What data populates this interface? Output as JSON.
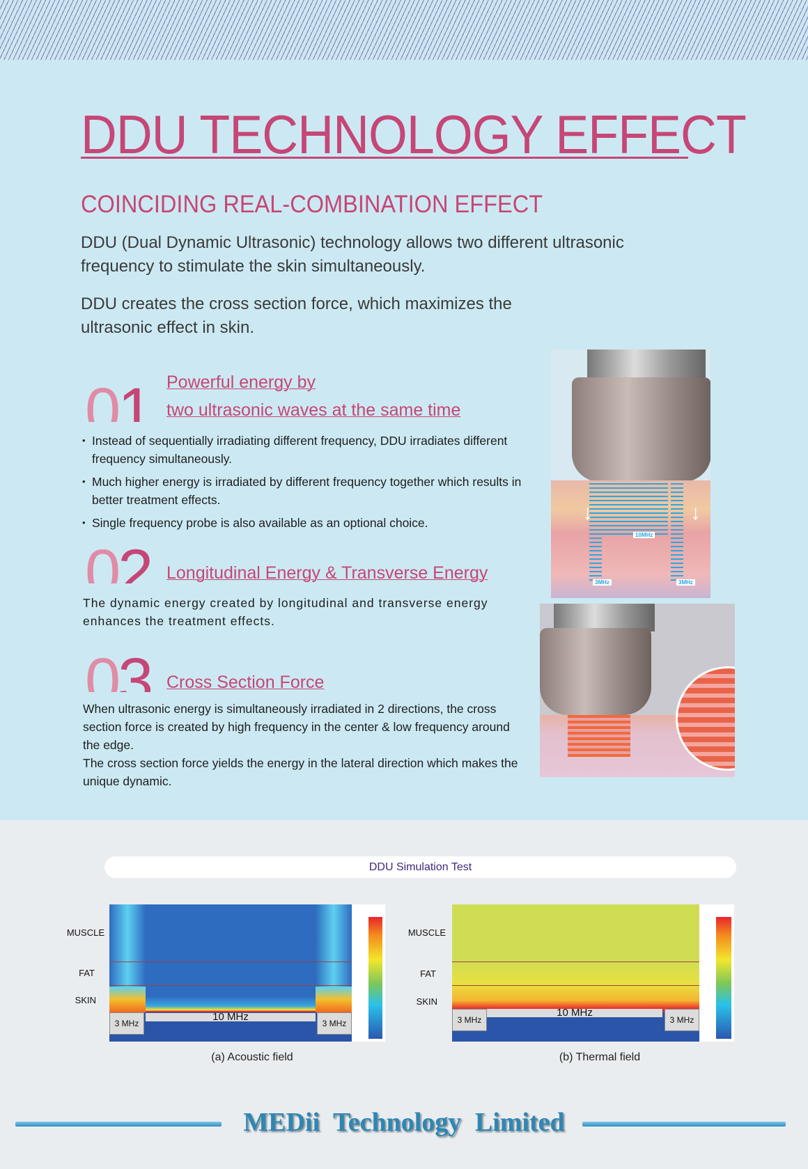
{
  "title": "DDU TECHNOLOGY EFFECT",
  "subtitle": "COINCIDING REAL-COMBINATION EFFECT",
  "intro": [
    "DDU (Dual Dynamic Ultrasonic) technology allows two different ultrasonic frequency to stimulate the skin simultaneously.",
    "DDU creates the cross section force, which maximizes the ultrasonic effect in skin."
  ],
  "sections": [
    {
      "num_a": "0",
      "num_b": "1",
      "heading_line1": "Powerful energy by",
      "heading_line2": "two ultrasonic waves at the same time",
      "bullets": [
        "Instead of sequentially irradiating different frequency, DDU irradiates different frequency simultaneously.",
        "Much higher energy is irradiated by different frequency together which results in better treatment effects.",
        "Single frequency probe is also available as an optional choice."
      ]
    },
    {
      "num_a": "0",
      "num_b": "2",
      "heading": "Longitudinal Energy & Transverse Energy",
      "text": "The dynamic energy created by longitudinal and transverse energy enhances the treatment effects."
    },
    {
      "num_a": "0",
      "num_b": "3",
      "heading": "Cross Section Force",
      "text": "When ultrasonic energy is simultaneously irradiated in 2 directions, the cross section force is created by high frequency in the center & low frequency around the edge.",
      "text2": "The cross section force yields the energy in the lateral direction which makes the unique dynamic."
    }
  ],
  "illustration": {
    "center_label": "10MHz",
    "side_label": "3MHz"
  },
  "simulation": {
    "title": "DDU Simulation Test",
    "layers": [
      "MUSCLE",
      "FAT",
      "SKIN"
    ],
    "center_freq": "10 MHz",
    "side_freq": "3 MHz",
    "captions": [
      "(a) Acoustic field",
      "(b) Thermal field"
    ]
  },
  "footer": "MEDii Technology Limited",
  "colors": {
    "accent": "#c64676",
    "bg_blue": "#cce9f3",
    "footer": "#2f86b3"
  }
}
